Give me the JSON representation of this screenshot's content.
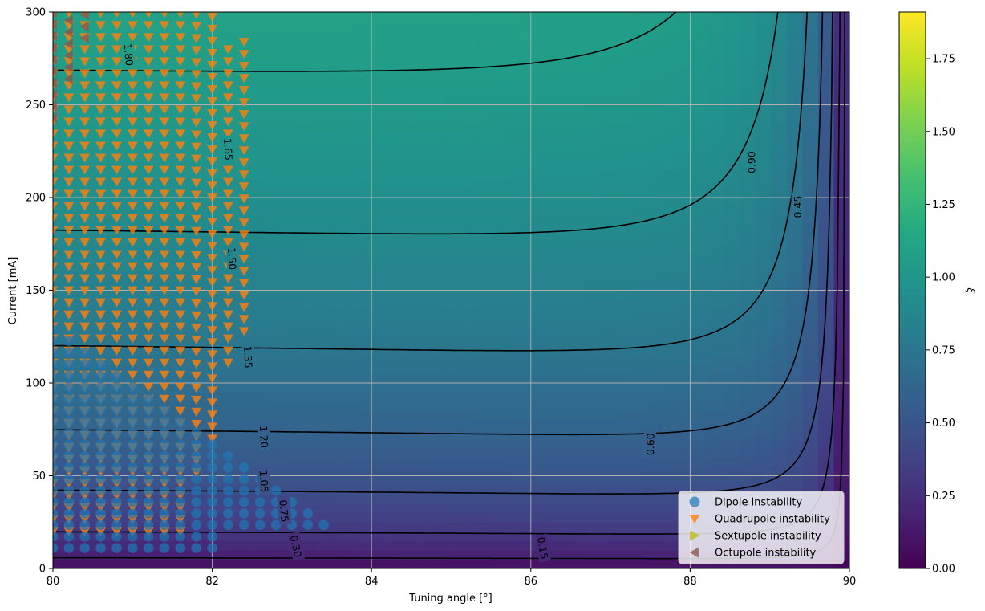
{
  "chart_data": {
    "type": "heatmap",
    "title": "",
    "xlabel": "Tuning angle [°]",
    "ylabel": "Current [mA]",
    "colorbar_label": "ξ",
    "colormap": "viridis",
    "xlim": [
      80,
      90
    ],
    "ylim": [
      0,
      300
    ],
    "clim": [
      0,
      1.91
    ],
    "x_ticks": [
      "80",
      "82",
      "84",
      "86",
      "88",
      "90"
    ],
    "y_ticks": [
      "0",
      "50",
      "100",
      "150",
      "200",
      "250",
      "300"
    ],
    "colorbar_ticks": [
      "0.00",
      "0.25",
      "0.50",
      "0.75",
      "1.00",
      "1.25",
      "1.50",
      "1.75"
    ],
    "grid": true,
    "legend_position": "lower-right",
    "legend": [
      {
        "name": "Dipole instability",
        "marker": "circle",
        "color": "#1f77b4"
      },
      {
        "name": "Quadrupole instability",
        "marker": "triangle-down",
        "color": "#ff7f0e"
      },
      {
        "name": "Sextupole instability",
        "marker": "triangle-right",
        "color": "#bcbd22"
      },
      {
        "name": "Octupole instability",
        "marker": "triangle-left",
        "color": "#8c564b"
      }
    ],
    "contour_levels": [
      "0.15",
      "0.30",
      "0.45",
      "0.60",
      "0.75",
      "0.90",
      "1.05",
      "1.20",
      "1.35",
      "1.50",
      "1.65",
      "1.80"
    ],
    "contour_labels": [
      {
        "text": "1.80",
        "x": 80.95,
        "y": 277
      },
      {
        "text": "1.65",
        "x": 82.2,
        "y": 226
      },
      {
        "text": "1.50",
        "x": 82.25,
        "y": 167
      },
      {
        "text": "1.35",
        "x": 82.45,
        "y": 114
      },
      {
        "text": "1.20",
        "x": 82.65,
        "y": 71
      },
      {
        "text": "1.05",
        "x": 82.65,
        "y": 47
      },
      {
        "text": "0.90",
        "x": 88.77,
        "y": 219
      },
      {
        "text": "0.75",
        "x": 82.9,
        "y": 31
      },
      {
        "text": "0.60",
        "x": 87.5,
        "y": 67
      },
      {
        "text": "0.45",
        "x": 89.35,
        "y": 195
      },
      {
        "text": "0.30",
        "x": 83.05,
        "y": 12
      },
      {
        "text": "0.15",
        "x": 86.15,
        "y": 11
      }
    ],
    "instability_regions": {
      "quadrupole": {
        "x_range": [
          80.0,
          82.45
        ],
        "y_range": [
          20,
          283
        ]
      },
      "dipole": {
        "x_range": [
          80.0,
          83.9
        ],
        "y_range": [
          10,
          130
        ]
      },
      "octupole": {
        "x_range": [
          80.0,
          80.4
        ],
        "y_range": [
          243,
          300
        ]
      }
    }
  }
}
